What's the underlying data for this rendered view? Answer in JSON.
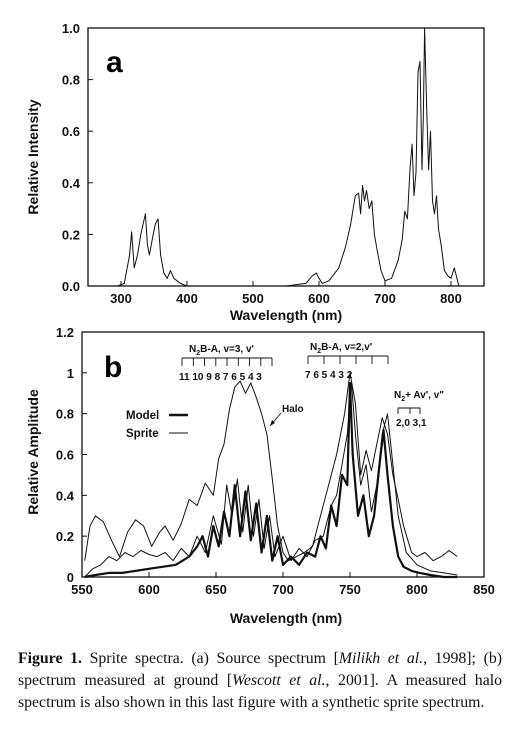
{
  "chart_data": [
    {
      "panel": "a",
      "type": "line",
      "xlabel": "Wavelength (nm)",
      "ylabel": "Relative Intensity",
      "xlim": [
        250,
        850
      ],
      "ylim": [
        0,
        1.0
      ],
      "xticks": [
        300,
        400,
        500,
        600,
        700,
        800
      ],
      "yticks": [
        "0.0",
        "0.2",
        "0.4",
        "0.6",
        "0.8",
        "1.0"
      ],
      "grid": false,
      "series": [
        {
          "x": [
            295,
            305,
            313,
            316,
            320,
            325,
            330,
            337,
            340,
            343,
            348,
            352,
            356,
            360,
            365,
            370,
            375,
            380,
            385,
            390,
            400,
            450,
            500,
            550,
            580,
            590,
            596,
            600,
            605,
            615,
            630,
            640,
            648,
            655,
            660,
            663,
            666,
            669,
            672,
            676,
            680,
            684,
            688,
            694,
            700,
            710,
            720,
            726,
            730,
            734,
            738,
            741,
            744,
            747,
            750,
            753,
            756,
            758,
            760,
            763,
            766,
            769,
            772,
            775,
            778,
            781,
            785,
            790,
            795,
            800,
            805,
            812
          ],
          "y": [
            0.0,
            0.01,
            0.12,
            0.21,
            0.07,
            0.12,
            0.2,
            0.28,
            0.16,
            0.12,
            0.19,
            0.24,
            0.26,
            0.12,
            0.05,
            0.03,
            0.06,
            0.03,
            0.02,
            0.01,
            0.0,
            0.0,
            0.0,
            0.0,
            0.01,
            0.04,
            0.05,
            0.03,
            0.01,
            0.02,
            0.07,
            0.15,
            0.24,
            0.35,
            0.36,
            0.28,
            0.39,
            0.33,
            0.37,
            0.3,
            0.33,
            0.2,
            0.14,
            0.06,
            0.02,
            0.03,
            0.1,
            0.18,
            0.29,
            0.26,
            0.46,
            0.55,
            0.35,
            0.44,
            0.83,
            0.87,
            0.45,
            0.65,
            1.0,
            0.7,
            0.45,
            0.6,
            0.33,
            0.28,
            0.35,
            0.22,
            0.16,
            0.06,
            0.04,
            0.03,
            0.07,
            0.0
          ]
        }
      ]
    },
    {
      "panel": "b",
      "type": "line",
      "xlabel": "Wavelength (nm)",
      "ylabel": "Relative Amplitude",
      "xlim": [
        550,
        850
      ],
      "ylim": [
        0,
        1.2
      ],
      "xticks": [
        550,
        600,
        650,
        700,
        750,
        800,
        850
      ],
      "yticks": [
        "0",
        "0.2",
        "0.4",
        "0.6",
        "0.8",
        "1",
        "1.2"
      ],
      "grid": false,
      "legend": {
        "position": "left",
        "entries": [
          "Model",
          "Sprite"
        ]
      },
      "annotations": {
        "halo": "Halo",
        "band1_pre": "N",
        "band1_sub": "2",
        "band1_post": "B-A,  v=3, v'",
        "band1_labels": "11 10 9 8 7 6 5  4  3",
        "band2_pre": "N",
        "band2_sub": "2",
        "band2_post": "B-A,  v=2,v'",
        "band2_labels": "7  6  5  4   3   2",
        "band3_pre": "N",
        "band3_sub": "2",
        "band3_post": "+ Av', v\"",
        "band3_labels": "2,0  3,1"
      },
      "series": [
        {
          "name": "Halo",
          "x": [
            552,
            556,
            560,
            566,
            572,
            578,
            584,
            590,
            596,
            602,
            608,
            612,
            618,
            624,
            630,
            636,
            642,
            648,
            652,
            656,
            660,
            664,
            668,
            672,
            676,
            680,
            684,
            688,
            692,
            696,
            700,
            704,
            710,
            716,
            722,
            728,
            734,
            740,
            746,
            750,
            754,
            758,
            762,
            766,
            770,
            774,
            778,
            782,
            786,
            790,
            796,
            800,
            806,
            812,
            818,
            824,
            830
          ],
          "y": [
            0.08,
            0.25,
            0.3,
            0.27,
            0.18,
            0.1,
            0.22,
            0.28,
            0.25,
            0.15,
            0.22,
            0.25,
            0.18,
            0.26,
            0.38,
            0.35,
            0.46,
            0.4,
            0.58,
            0.65,
            0.82,
            0.93,
            0.96,
            0.9,
            0.95,
            0.88,
            0.8,
            0.7,
            0.48,
            0.25,
            0.12,
            0.08,
            0.1,
            0.12,
            0.15,
            0.3,
            0.45,
            0.6,
            0.8,
            1.0,
            0.85,
            0.5,
            0.62,
            0.52,
            0.65,
            0.78,
            0.7,
            0.5,
            0.38,
            0.25,
            0.12,
            0.1,
            0.12,
            0.08,
            0.1,
            0.13,
            0.1
          ]
        },
        {
          "name": "Model",
          "x": [
            552,
            560,
            570,
            580,
            590,
            600,
            610,
            620,
            630,
            636,
            640,
            644,
            648,
            652,
            656,
            660,
            664,
            668,
            672,
            676,
            680,
            684,
            688,
            692,
            696,
            700,
            706,
            712,
            718,
            724,
            728,
            732,
            736,
            740,
            744,
            748,
            750,
            752,
            756,
            760,
            764,
            768,
            772,
            775,
            778,
            782,
            786,
            790,
            796,
            802,
            810,
            820,
            830
          ],
          "y": [
            0.0,
            0.01,
            0.02,
            0.02,
            0.03,
            0.04,
            0.05,
            0.06,
            0.1,
            0.15,
            0.2,
            0.1,
            0.25,
            0.15,
            0.32,
            0.2,
            0.45,
            0.2,
            0.42,
            0.18,
            0.36,
            0.12,
            0.3,
            0.08,
            0.2,
            0.06,
            0.1,
            0.06,
            0.12,
            0.1,
            0.2,
            0.14,
            0.35,
            0.25,
            0.5,
            0.45,
            0.95,
            0.6,
            0.3,
            0.4,
            0.2,
            0.3,
            0.55,
            0.72,
            0.5,
            0.25,
            0.1,
            0.05,
            0.03,
            0.02,
            0.01,
            0.0,
            0.0
          ]
        },
        {
          "name": "Sprite",
          "x": [
            552,
            558,
            564,
            570,
            576,
            582,
            588,
            594,
            600,
            606,
            612,
            618,
            624,
            630,
            636,
            642,
            648,
            654,
            658,
            662,
            666,
            670,
            674,
            678,
            682,
            686,
            690,
            694,
            700,
            706,
            712,
            718,
            724,
            730,
            736,
            740,
            744,
            748,
            751,
            754,
            758,
            762,
            766,
            770,
            774,
            778,
            782,
            786,
            792,
            800,
            810,
            820,
            830
          ],
          "y": [
            0.0,
            0.04,
            0.06,
            0.1,
            0.08,
            0.12,
            0.1,
            0.13,
            0.11,
            0.1,
            0.12,
            0.08,
            0.14,
            0.1,
            0.2,
            0.12,
            0.3,
            0.16,
            0.45,
            0.3,
            0.48,
            0.22,
            0.45,
            0.2,
            0.38,
            0.14,
            0.3,
            0.1,
            0.2,
            0.08,
            0.14,
            0.1,
            0.18,
            0.2,
            0.35,
            0.4,
            0.55,
            0.7,
            0.96,
            0.7,
            0.45,
            0.55,
            0.32,
            0.45,
            0.7,
            0.8,
            0.55,
            0.3,
            0.12,
            0.06,
            0.03,
            0.02,
            0.01
          ]
        }
      ]
    }
  ],
  "caption": {
    "label": "Figure 1.",
    "t1": "  Sprite spectra. (a) Source spectrum [",
    "i1": "Milikh et al.",
    "t2": ", 1998]; (b) spectrum measured at ground [",
    "i2": "Wescott et al.",
    "t3": ", 2001]. A measured halo spectrum is also shown in this last figure with a synthetic sprite spectrum."
  }
}
